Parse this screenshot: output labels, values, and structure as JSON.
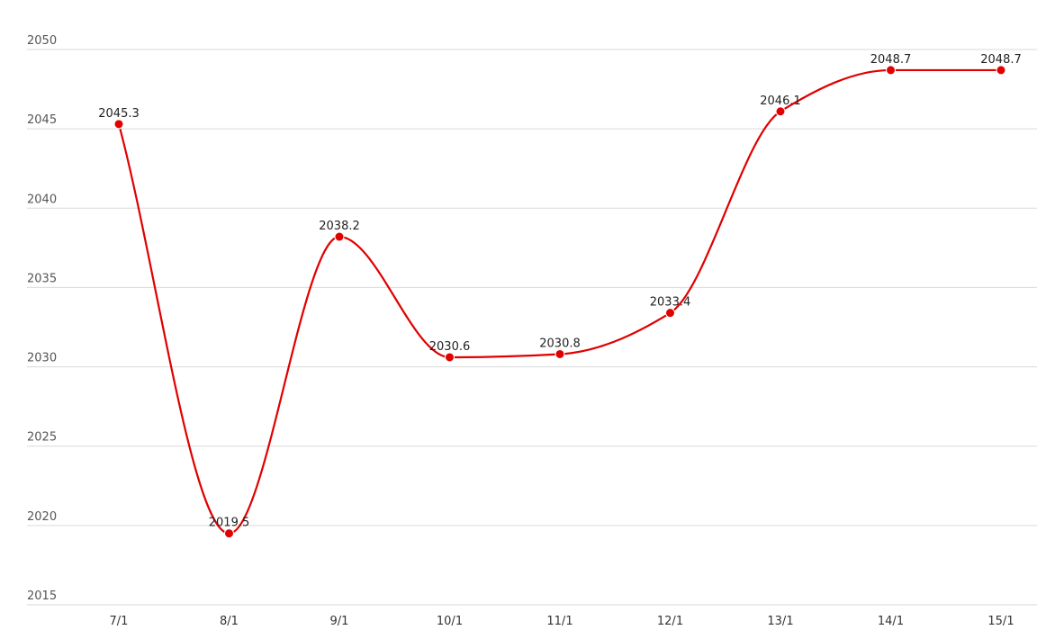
{
  "chart_data": {
    "type": "line",
    "categories": [
      "7/1",
      "8/1",
      "9/1",
      "10/1",
      "11/1",
      "12/1",
      "13/1",
      "14/1",
      "15/1"
    ],
    "values": [
      2045.3,
      2019.5,
      2038.2,
      2030.6,
      2030.8,
      2033.4,
      2046.1,
      2048.7,
      2048.7
    ],
    "color": "#e00000",
    "ylim": [
      2015,
      2050
    ],
    "yticks": [
      2015,
      2020,
      2025,
      2030,
      2035,
      2040,
      2045,
      2050
    ],
    "grid": true,
    "smooth": true
  }
}
